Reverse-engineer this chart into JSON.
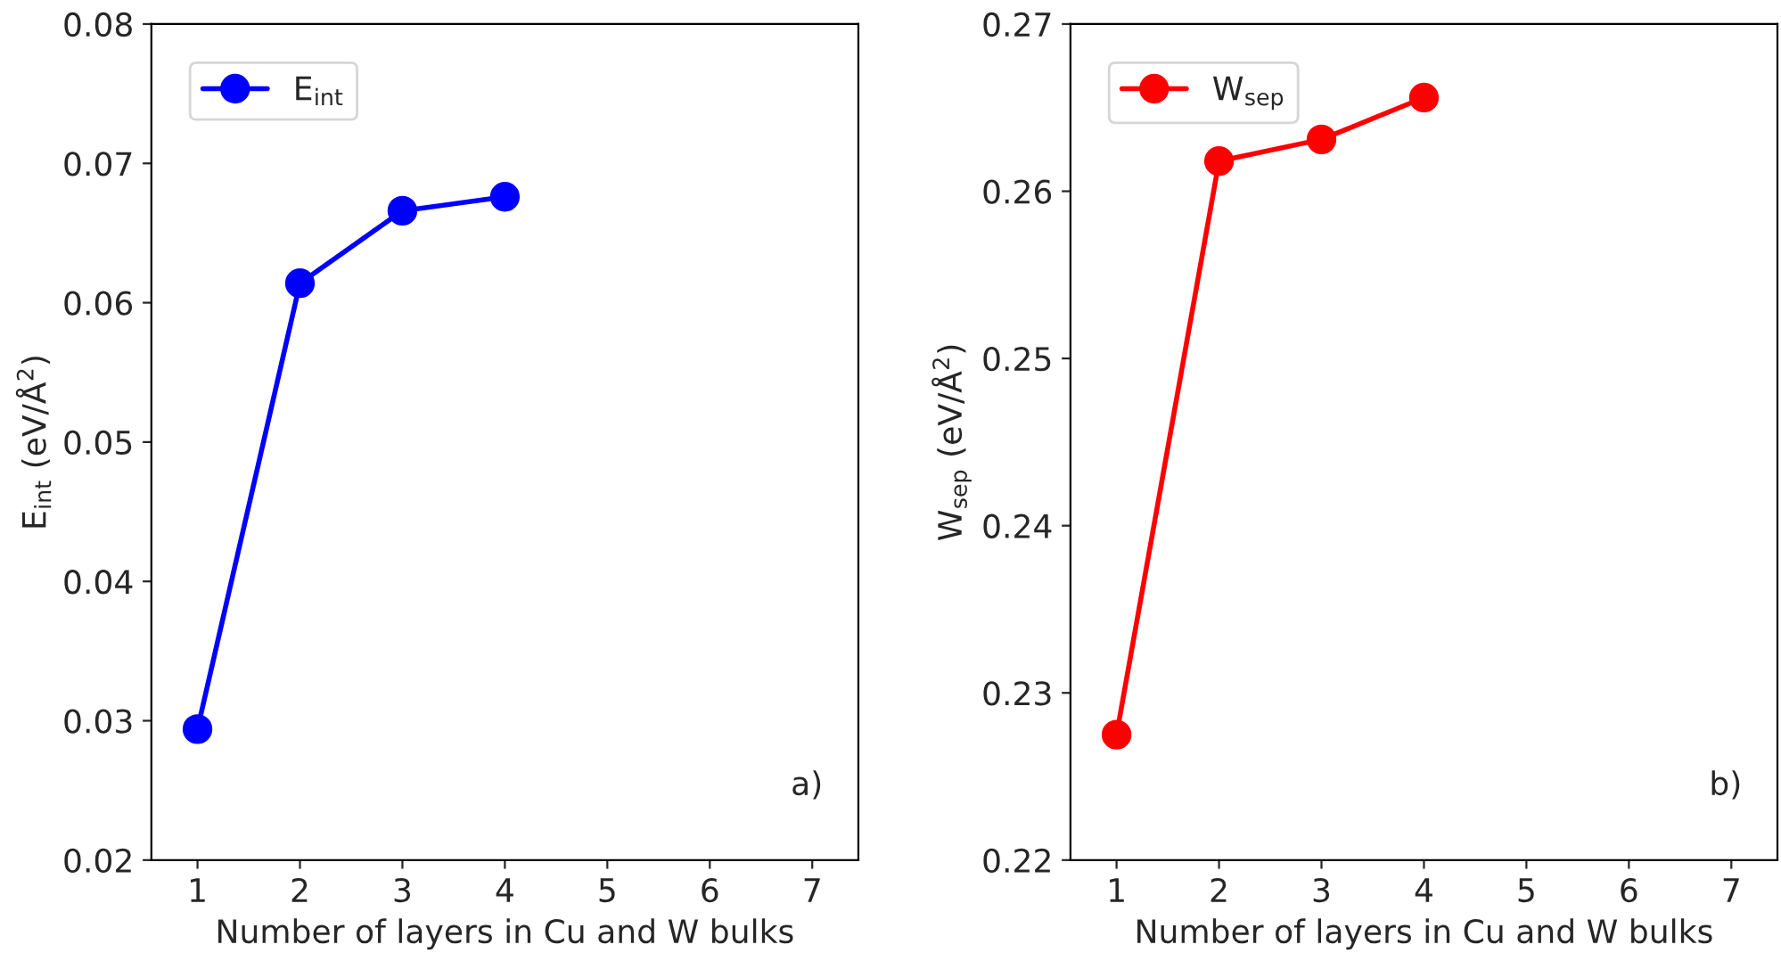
{
  "chart_data": [
    {
      "type": "line",
      "x": [
        1,
        2,
        3,
        4
      ],
      "xlabel": "Number of layers in Cu and W bulks",
      "ylabel": "E$_{int}$ (eV/Å$^{2}$)",
      "series": [
        {
          "name": "E$_{int}$",
          "color": "#0000ff",
          "values": [
            0.0294,
            0.0614,
            0.0666,
            0.0676
          ]
        }
      ],
      "xlim": [
        0.55,
        7.45
      ],
      "xticks": [
        1,
        2,
        3,
        4,
        5,
        6,
        7
      ],
      "ylim": [
        0.02,
        0.08
      ],
      "yticks": [
        0.02,
        0.03,
        0.04,
        0.05,
        0.06,
        0.07,
        0.08
      ],
      "marker": "circle",
      "line_style": "solid",
      "legend": "top left",
      "grid": false,
      "annotations": [
        "a)"
      ]
    },
    {
      "type": "line",
      "x": [
        1,
        2,
        3,
        4
      ],
      "xlabel": "Number of layers in Cu and W bulks",
      "ylabel": "W$_{sep}$ (eV/Å$^{2}$)",
      "series": [
        {
          "name": "W$_{sep}$",
          "color": "#ff0000",
          "values": [
            0.2275,
            0.2618,
            0.2631,
            0.2656
          ]
        }
      ],
      "xlim": [
        0.55,
        7.45
      ],
      "xticks": [
        1,
        2,
        3,
        4,
        5,
        6,
        7
      ],
      "ylim": [
        0.22,
        0.27
      ],
      "yticks": [
        0.22,
        0.23,
        0.24,
        0.25,
        0.26,
        0.27
      ],
      "marker": "circle",
      "line_style": "solid",
      "legend": "top left",
      "grid": false,
      "annotations": [
        "b)"
      ]
    }
  ]
}
